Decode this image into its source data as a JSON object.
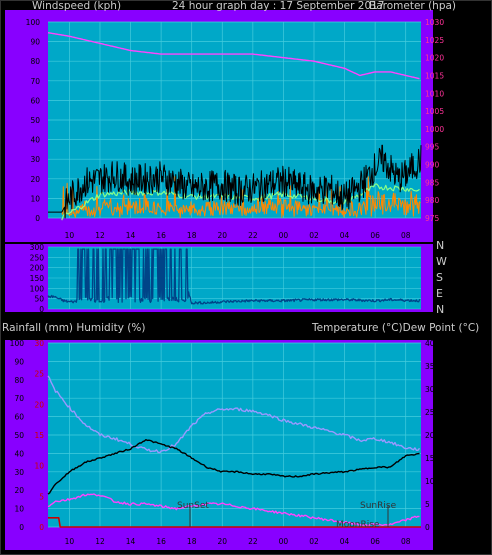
{
  "header": {
    "left": "Windspeed (kph)",
    "center": "24 hour graph day : 17 September 2017",
    "right": "Barometer (hpa)"
  },
  "direction_labels": [
    "N",
    "W",
    "S",
    "E",
    "N"
  ],
  "lower_header": {
    "left": "Rainfall (mm)  Humidity (%)",
    "right": "Temperature (°C)Dew Point (°C)"
  },
  "annotations": {
    "sunset": "SunSet",
    "sunrise": "SunRise",
    "moonrise": "MoonRise"
  },
  "colors": {
    "frame": "#8800ff",
    "plot_bg": "#00a8c8",
    "grid": "#44ccdd",
    "wind": "#000000",
    "gust": "#ff8800",
    "avg": "#88ff88",
    "baro": "#ff44ff",
    "direction": "#004488",
    "humidity": "#9999ff",
    "temperature": "#000000",
    "dewpoint": "#ff44ff",
    "rain": "#cc0000"
  },
  "chart_data": [
    {
      "type": "line",
      "title": "24 hour graph day : 17 September 2017",
      "x_ticks": [
        "10",
        "12",
        "14",
        "16",
        "18",
        "20",
        "22",
        "00",
        "02",
        "04",
        "06",
        "08"
      ],
      "y_left": {
        "label": "Windspeed (kph)",
        "range": [
          0,
          100
        ],
        "ticks": [
          0,
          10,
          20,
          30,
          40,
          50,
          60,
          70,
          80,
          90,
          100
        ]
      },
      "y_right": {
        "label": "Barometer (hpa)",
        "range": [
          975,
          1030
        ],
        "ticks": [
          975,
          980,
          985,
          990,
          995,
          1000,
          1005,
          1010,
          1015,
          1020,
          1025,
          1030
        ]
      },
      "grid": true,
      "series": [
        {
          "name": "Windspeed",
          "axis": "left",
          "x": [
            8.6,
            9.5,
            10,
            11,
            12,
            13,
            14,
            15,
            16,
            17,
            18,
            19,
            20,
            21,
            22,
            23,
            24,
            25,
            26,
            27,
            28,
            29,
            30,
            30.5,
            31,
            31.5,
            32,
            33
          ],
          "y": [
            3,
            3,
            10,
            18,
            20,
            22,
            19,
            20,
            21,
            18,
            15,
            16,
            17,
            14,
            15,
            17,
            19,
            16,
            14,
            15,
            10,
            16,
            26,
            30,
            25,
            20,
            22,
            30
          ]
        },
        {
          "name": "Gust",
          "axis": "left",
          "x": [
            9.5,
            12,
            14,
            16,
            18,
            20,
            22,
            24,
            26,
            28,
            30,
            32,
            33
          ],
          "y": [
            0,
            6,
            8,
            6,
            5,
            7,
            4,
            8,
            5,
            3,
            12,
            10,
            10
          ]
        },
        {
          "name": "Average",
          "axis": "left",
          "x": [
            9.5,
            12,
            14,
            16,
            18,
            20,
            22,
            24,
            26,
            28,
            30,
            32,
            33
          ],
          "y": [
            0,
            12,
            13,
            13,
            11,
            11,
            10,
            12,
            10,
            8,
            16,
            15,
            14
          ]
        },
        {
          "name": "Barometer",
          "axis": "right",
          "x": [
            8.6,
            10,
            12,
            14,
            16,
            18,
            20,
            22,
            24,
            26,
            28,
            29,
            30,
            31,
            32,
            33
          ],
          "y": [
            1027,
            1026,
            1024,
            1022,
            1021,
            1021,
            1021,
            1021,
            1020,
            1019,
            1017,
            1015,
            1016,
            1016,
            1015,
            1014
          ]
        }
      ]
    },
    {
      "type": "line",
      "title": "",
      "y_left": {
        "ticks": [
          0,
          50,
          100,
          150,
          200,
          250,
          300
        ],
        "range": [
          0,
          300
        ]
      },
      "y_right_labels": [
        "N",
        "W",
        "S",
        "E",
        "N"
      ],
      "series": [
        {
          "name": "Wind direction",
          "x": [
            8.6,
            9,
            9.6,
            10,
            11,
            12,
            13,
            14,
            15,
            16,
            17,
            18,
            19,
            20,
            22,
            24,
            26,
            28,
            30,
            31,
            32,
            33
          ],
          "y": [
            60,
            60,
            40,
            35,
            38,
            280,
            290,
            280,
            285,
            290,
            280,
            30,
            30,
            35,
            40,
            40,
            45,
            45,
            40,
            45,
            42,
            40
          ]
        }
      ]
    },
    {
      "type": "line",
      "title": "",
      "x_ticks": [
        "10",
        "12",
        "14",
        "16",
        "18",
        "20",
        "22",
        "00",
        "02",
        "04",
        "06",
        "08"
      ],
      "y_left": {
        "label": "Rainfall (mm)  Humidity (%)",
        "range": [
          0,
          100
        ],
        "ticks": [
          0,
          10,
          20,
          30,
          40,
          50,
          60,
          70,
          80,
          90,
          100
        ],
        "rain_ticks": [
          0,
          5,
          10,
          15,
          20,
          25,
          30
        ]
      },
      "y_right": {
        "label": "Temperature (°C)Dew Point (°C)",
        "range": [
          0,
          40
        ],
        "ticks": [
          0,
          5,
          10,
          15,
          20,
          25,
          30,
          35,
          40
        ]
      },
      "grid": true,
      "series": [
        {
          "name": "Humidity",
          "axis": "left",
          "x": [
            8.6,
            9,
            10,
            11,
            12,
            13,
            14,
            15,
            16,
            17,
            18,
            19,
            20,
            21,
            22,
            23,
            24,
            25,
            26,
            27,
            28,
            29,
            30,
            31,
            32,
            33
          ],
          "y": [
            82,
            75,
            65,
            56,
            50,
            48,
            45,
            42,
            41,
            45,
            55,
            62,
            64,
            64,
            63,
            61,
            58,
            56,
            54,
            52,
            50,
            47,
            48,
            46,
            43,
            42
          ]
        },
        {
          "name": "Temperature",
          "axis": "right",
          "x": [
            8.6,
            9,
            10,
            11,
            12,
            13,
            14,
            15,
            16,
            17,
            18,
            19,
            20,
            21,
            22,
            23,
            24,
            25,
            26,
            27,
            28,
            29,
            30,
            31,
            32,
            33
          ],
          "y": [
            7,
            9,
            12,
            14,
            15,
            16,
            17,
            19,
            18,
            17,
            15,
            13,
            12,
            12,
            11.5,
            11.5,
            11,
            11,
            11.5,
            11.8,
            12,
            12.5,
            13,
            13,
            15.5,
            16
          ]
        },
        {
          "name": "Dew Point",
          "axis": "right",
          "x": [
            8.6,
            9,
            10,
            11,
            12,
            13,
            14,
            15,
            16,
            17,
            18,
            19,
            20,
            21,
            22,
            23,
            24,
            25,
            26,
            27,
            28,
            29,
            30,
            31,
            32,
            33
          ],
          "y": [
            4.5,
            5.5,
            6,
            7,
            7,
            5.5,
            5,
            5,
            4.5,
            4,
            4.5,
            5,
            5,
            4.5,
            4,
            3.5,
            3,
            2.5,
            2,
            1.5,
            1,
            0.5,
            0.5,
            0.5,
            1.5,
            2.5
          ]
        },
        {
          "name": "Rainfall",
          "axis": "left",
          "x": [
            8.6,
            9.3,
            9.4,
            33
          ],
          "y": [
            1.5,
            1.5,
            0,
            0
          ]
        }
      ]
    }
  ]
}
